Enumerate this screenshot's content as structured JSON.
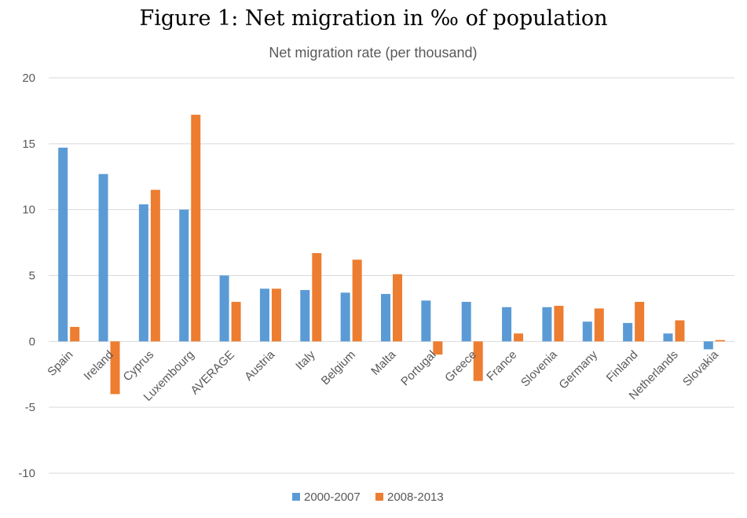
{
  "figure_caption": "Figure 1: Net migration in ‰ of population",
  "chart_data": {
    "type": "bar",
    "title": "Net migration rate (per thousand)",
    "xlabel": "",
    "ylabel": "",
    "ylim": [
      -10,
      20
    ],
    "yticks": [
      -10,
      -5,
      0,
      5,
      10,
      15,
      20
    ],
    "grid": true,
    "legend_position": "bottom",
    "categories": [
      "Spain",
      "Ireland",
      "Cyprus",
      "Luxembourg",
      "AVERAGE",
      "Austria",
      "Italy",
      "Belgium",
      "Malta",
      "Portugal",
      "Greece",
      "France",
      "Slovenia",
      "Germany",
      "Finland",
      "Netherlands",
      "Slovakia"
    ],
    "series": [
      {
        "name": "2000-2007",
        "color": "#5B9BD5",
        "values": [
          14.7,
          12.7,
          10.4,
          10.0,
          5.0,
          4.0,
          3.9,
          3.7,
          3.6,
          3.1,
          3.0,
          2.6,
          2.6,
          1.5,
          1.4,
          0.6,
          -0.6
        ]
      },
      {
        "name": "2008-2013",
        "color": "#ED7D31",
        "values": [
          1.1,
          -4.0,
          11.5,
          17.2,
          3.0,
          4.0,
          6.7,
          6.2,
          5.1,
          -1.0,
          -3.0,
          0.6,
          2.7,
          2.5,
          3.0,
          1.6,
          0.1
        ]
      }
    ],
    "colors": {
      "gridline": "#D9D9D9",
      "axis_text": "#595959"
    }
  }
}
